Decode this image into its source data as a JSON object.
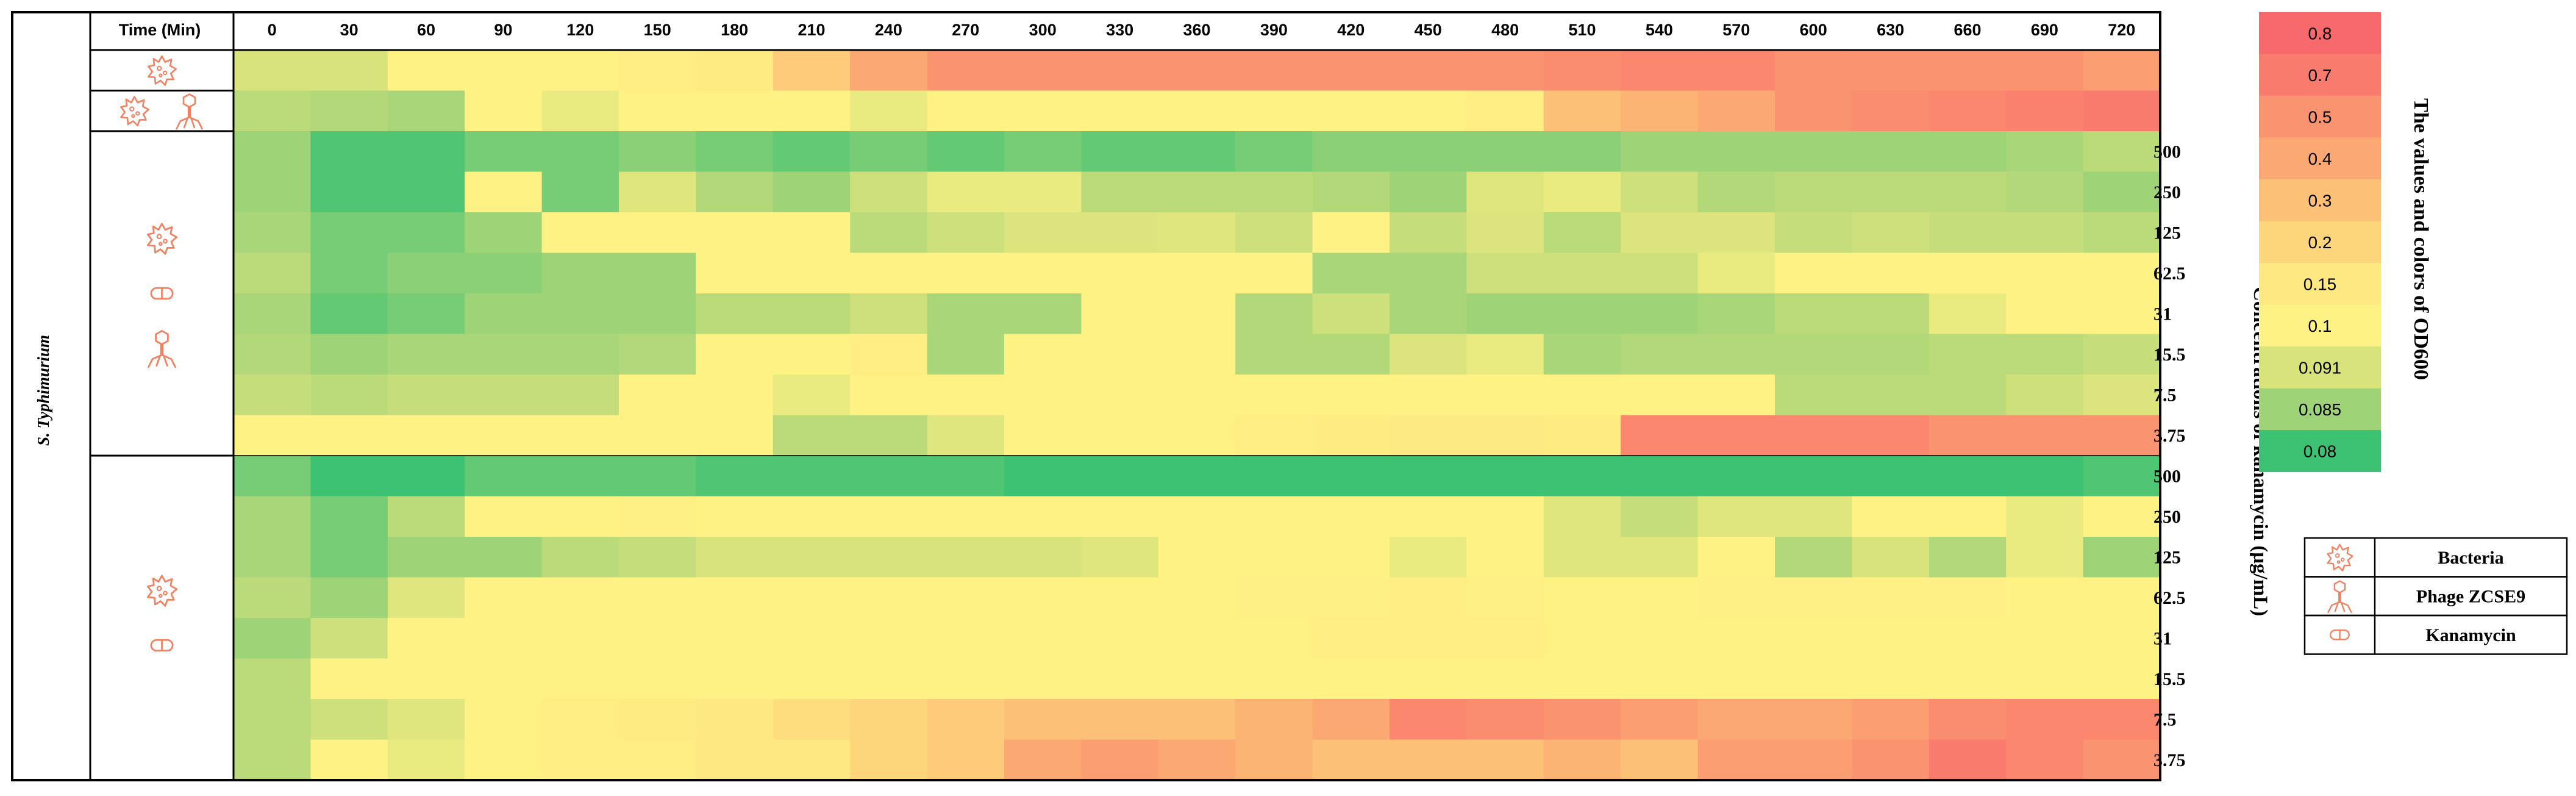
{
  "chart_data": {
    "type": "heatmap",
    "organism_label": "S. Typhimurium",
    "time_header": "Time (Min)",
    "time_points": [
      "0",
      "30",
      "60",
      "90",
      "120",
      "150",
      "180",
      "210",
      "240",
      "270",
      "300",
      "330",
      "360",
      "390",
      "420",
      "450",
      "480",
      "510",
      "540",
      "570",
      "600",
      "630",
      "660",
      "690",
      "720"
    ],
    "ylabel": "Concentrations of kanamycin (μg/mL)",
    "groups": [
      {
        "treatment": [
          "bacteria"
        ],
        "rows": [
          {
            "concentration": "",
            "values": [
              0.091,
              0.091,
              0.1,
              0.1,
              0.1,
              0.12,
              0.13,
              0.25,
              0.4,
              0.5,
              0.5,
              0.5,
              0.5,
              0.5,
              0.5,
              0.5,
              0.5,
              0.55,
              0.6,
              0.6,
              0.5,
              0.5,
              0.5,
              0.5,
              0.45
            ]
          }
        ]
      },
      {
        "treatment": [
          "bacteria",
          "phage"
        ],
        "rows": [
          {
            "concentration": "",
            "values": [
              0.088,
              0.087,
              0.086,
              0.1,
              0.095,
              0.1,
              0.1,
              0.1,
              0.095,
              0.1,
              0.1,
              0.1,
              0.1,
              0.1,
              0.1,
              0.1,
              0.12,
              0.3,
              0.35,
              0.4,
              0.5,
              0.55,
              0.6,
              0.65,
              0.7
            ]
          }
        ]
      },
      {
        "treatment": [
          "bacteria",
          "kanamycin",
          "phage"
        ],
        "rows": [
          {
            "concentration": "500",
            "values": [
              0.085,
              0.081,
              0.081,
              0.083,
              0.083,
              0.084,
              0.083,
              0.082,
              0.083,
              0.082,
              0.083,
              0.082,
              0.082,
              0.083,
              0.084,
              0.084,
              0.084,
              0.084,
              0.085,
              0.085,
              0.085,
              0.085,
              0.085,
              0.086,
              0.088
            ]
          },
          {
            "concentration": "250",
            "values": [
              0.085,
              0.081,
              0.081,
              0.1,
              0.083,
              0.093,
              0.087,
              0.085,
              0.09,
              0.095,
              0.095,
              0.088,
              0.088,
              0.088,
              0.087,
              0.085,
              0.093,
              0.095,
              0.09,
              0.087,
              0.088,
              0.088,
              0.088,
              0.087,
              0.085
            ]
          },
          {
            "concentration": "125",
            "values": [
              0.086,
              0.083,
              0.083,
              0.085,
              0.1,
              0.1,
              0.1,
              0.1,
              0.088,
              0.09,
              0.092,
              0.092,
              0.093,
              0.09,
              0.1,
              0.089,
              0.092,
              0.088,
              0.092,
              0.092,
              0.089,
              0.09,
              0.089,
              0.089,
              0.088
            ]
          },
          {
            "concentration": "62.5",
            "values": [
              0.088,
              0.083,
              0.084,
              0.084,
              0.085,
              0.085,
              0.1,
              0.1,
              0.1,
              0.1,
              0.1,
              0.1,
              0.1,
              0.1,
              0.086,
              0.086,
              0.09,
              0.09,
              0.09,
              0.095,
              0.1,
              0.1,
              0.1,
              0.1,
              0.1
            ]
          },
          {
            "concentration": "31",
            "values": [
              0.086,
              0.082,
              0.083,
              0.085,
              0.085,
              0.085,
              0.088,
              0.088,
              0.09,
              0.086,
              0.086,
              0.1,
              0.1,
              0.087,
              0.09,
              0.086,
              0.085,
              0.085,
              0.085,
              0.086,
              0.088,
              0.088,
              0.095,
              0.1,
              0.1
            ]
          },
          {
            "concentration": "15.5",
            "values": [
              0.087,
              0.085,
              0.086,
              0.086,
              0.086,
              0.087,
              0.1,
              0.1,
              0.12,
              0.086,
              0.1,
              0.1,
              0.1,
              0.087,
              0.087,
              0.092,
              0.095,
              0.086,
              0.087,
              0.087,
              0.087,
              0.087,
              0.088,
              0.088,
              0.089
            ]
          },
          {
            "concentration": "7.5",
            "values": [
              0.089,
              0.088,
              0.089,
              0.089,
              0.089,
              0.1,
              0.1,
              0.095,
              0.1,
              0.1,
              0.1,
              0.1,
              0.1,
              0.1,
              0.1,
              0.1,
              0.1,
              0.1,
              0.1,
              0.1,
              0.088,
              0.088,
              0.088,
              0.09,
              0.092
            ]
          },
          {
            "concentration": "3.75",
            "values": [
              0.1,
              0.1,
              0.1,
              0.1,
              0.1,
              0.1,
              0.1,
              0.088,
              0.088,
              0.093,
              0.1,
              0.1,
              0.1,
              0.12,
              0.13,
              0.14,
              0.14,
              0.13,
              0.6,
              0.6,
              0.6,
              0.6,
              0.5,
              0.5,
              0.5
            ]
          }
        ]
      },
      {
        "treatment": [
          "bacteria",
          "kanamycin"
        ],
        "rows": [
          {
            "concentration": "500",
            "values": [
              0.083,
              0.08,
              0.08,
              0.082,
              0.082,
              0.082,
              0.081,
              0.081,
              0.081,
              0.081,
              0.08,
              0.08,
              0.08,
              0.08,
              0.08,
              0.08,
              0.08,
              0.08,
              0.08,
              0.08,
              0.08,
              0.08,
              0.08,
              0.08,
              0.081
            ]
          },
          {
            "concentration": "250",
            "values": [
              0.086,
              0.083,
              0.088,
              0.1,
              0.1,
              0.11,
              0.1,
              0.1,
              0.1,
              0.1,
              0.1,
              0.1,
              0.1,
              0.1,
              0.1,
              0.1,
              0.1,
              0.093,
              0.089,
              0.093,
              0.093,
              0.1,
              0.1,
              0.095,
              0.1
            ]
          },
          {
            "concentration": "125",
            "values": [
              0.086,
              0.083,
              0.085,
              0.085,
              0.088,
              0.089,
              0.091,
              0.091,
              0.091,
              0.091,
              0.091,
              0.093,
              0.1,
              0.1,
              0.1,
              0.095,
              0.1,
              0.093,
              0.093,
              0.1,
              0.087,
              0.091,
              0.087,
              0.095,
              0.085
            ]
          },
          {
            "concentration": "62.5",
            "values": [
              0.088,
              0.085,
              0.093,
              0.1,
              0.1,
              0.1,
              0.1,
              0.1,
              0.1,
              0.1,
              0.1,
              0.1,
              0.1,
              0.11,
              0.11,
              0.12,
              0.11,
              0.1,
              0.1,
              0.11,
              0.11,
              0.11,
              0.11,
              0.1,
              0.1
            ]
          },
          {
            "concentration": "31",
            "values": [
              0.085,
              0.09,
              0.1,
              0.1,
              0.1,
              0.1,
              0.1,
              0.1,
              0.1,
              0.1,
              0.1,
              0.1,
              0.1,
              0.1,
              0.12,
              0.12,
              0.12,
              0.1,
              0.1,
              0.1,
              0.1,
              0.1,
              0.1,
              0.1,
              0.1
            ]
          },
          {
            "concentration": "15.5",
            "values": [
              0.088,
              0.1,
              0.1,
              0.1,
              0.1,
              0.1,
              0.1,
              0.1,
              0.1,
              0.1,
              0.1,
              0.1,
              0.1,
              0.1,
              0.1,
              0.1,
              0.1,
              0.1,
              0.1,
              0.1,
              0.1,
              0.1,
              0.1,
              0.1,
              0.1
            ]
          },
          {
            "concentration": "7.5",
            "values": [
              0.088,
              0.09,
              0.093,
              0.1,
              0.12,
              0.13,
              0.15,
              0.18,
              0.2,
              0.25,
              0.3,
              0.3,
              0.3,
              0.35,
              0.4,
              0.6,
              0.55,
              0.5,
              0.45,
              0.4,
              0.4,
              0.45,
              0.55,
              0.6,
              0.6
            ]
          },
          {
            "concentration": "3.75",
            "values": [
              0.088,
              0.1,
              0.095,
              0.1,
              0.12,
              0.12,
              0.15,
              0.15,
              0.2,
              0.25,
              0.4,
              0.45,
              0.4,
              0.35,
              0.3,
              0.3,
              0.3,
              0.35,
              0.3,
              0.45,
              0.45,
              0.5,
              0.7,
              0.6,
              0.5
            ]
          }
        ]
      }
    ],
    "legend": {
      "title": "The values and colors of OD600",
      "placement": "right",
      "entries": [
        {
          "label": "0.8",
          "color": "#f8696b"
        },
        {
          "label": "0.7",
          "color": "#f97b6d"
        },
        {
          "label": "0.5",
          "color": "#fa936f"
        },
        {
          "label": "0.4",
          "color": "#fba872"
        },
        {
          "label": "0.3",
          "color": "#fcc076"
        },
        {
          "label": "0.2",
          "color": "#fdd67b"
        },
        {
          "label": "0.15",
          "color": "#fee882"
        },
        {
          "label": "0.1",
          "color": "#fef285"
        },
        {
          "label": "0.091",
          "color": "#d8e37c"
        },
        {
          "label": "0.085",
          "color": "#9fd378"
        },
        {
          "label": "0.08",
          "color": "#3cc272"
        }
      ]
    },
    "key": [
      {
        "icon": "bacteria-icon",
        "label": "Bacteria"
      },
      {
        "icon": "phage-icon",
        "label": "Phage ZCSE9"
      },
      {
        "icon": "kanamycin-icon",
        "label": "Kanamycin"
      }
    ],
    "icon_color": "#f08262"
  }
}
